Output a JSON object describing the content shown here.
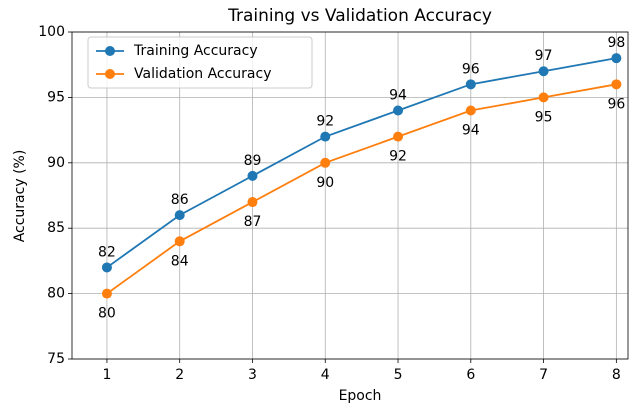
{
  "chart_data": {
    "type": "line",
    "title": "Training vs Validation Accuracy",
    "x_label": "Epoch",
    "y_label": "Accuracy (%)",
    "x": [
      1,
      2,
      3,
      4,
      5,
      6,
      7,
      8
    ],
    "series": [
      {
        "name": "Training Accuracy",
        "color": "#1f77b4",
        "values": [
          82,
          86,
          89,
          92,
          94,
          96,
          97,
          98
        ]
      },
      {
        "name": "Validation Accuracy",
        "color": "#ff7f0e",
        "values": [
          80,
          84,
          87,
          90,
          92,
          94,
          95,
          96
        ]
      }
    ],
    "xlim": [
      0.52,
      8.16
    ],
    "xticks": [
      1,
      2,
      3,
      4,
      5,
      6,
      7,
      8
    ],
    "ylim": [
      75,
      100
    ],
    "yticks": [
      75,
      80,
      85,
      90,
      95,
      100
    ],
    "grid": true,
    "legend": "upper left"
  }
}
